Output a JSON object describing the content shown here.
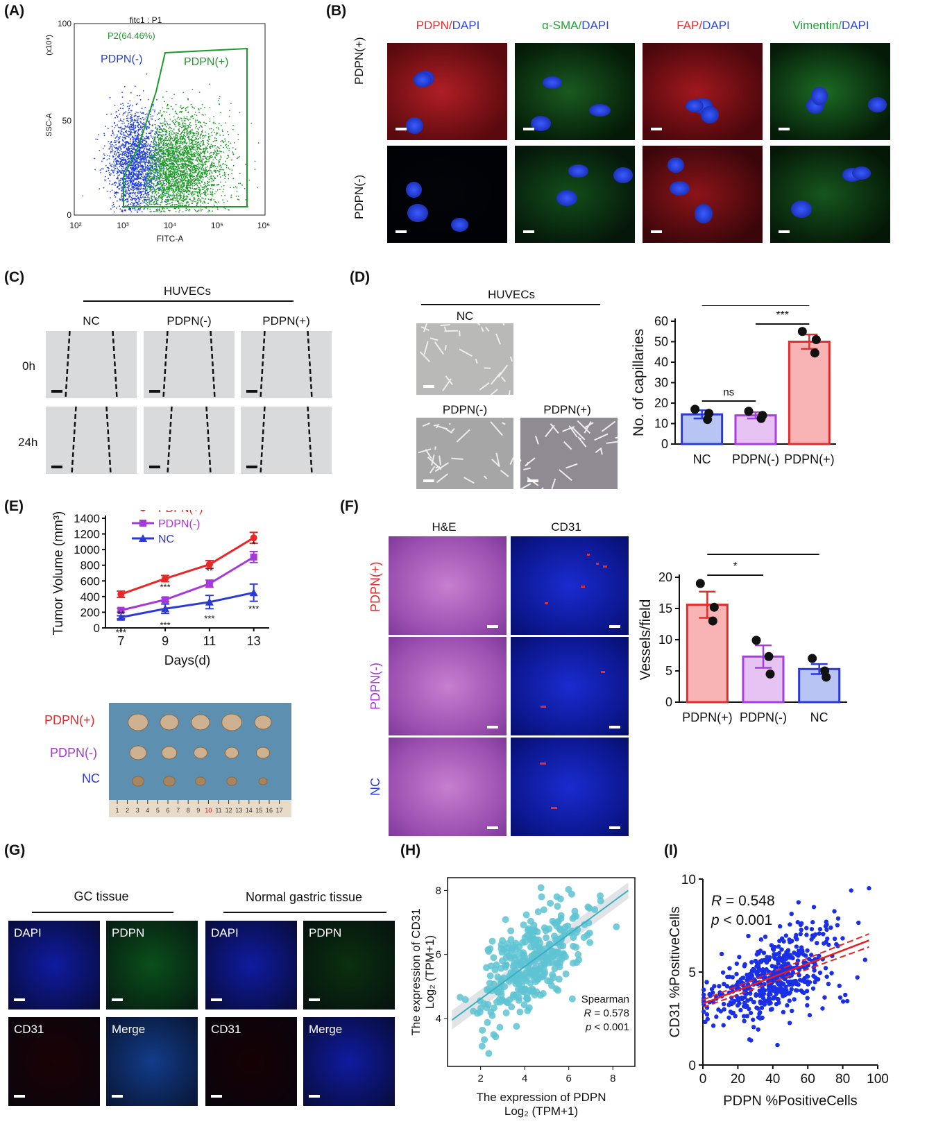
{
  "panel_labels": {
    "A": "(A)",
    "B": "(B)",
    "C": "(C)",
    "D": "(D)",
    "E": "(E)",
    "F": "(F)",
    "G": "(G)",
    "H": "(H)",
    "I": "(I)"
  },
  "panel_A": {
    "title": "fitc1 : P1",
    "gate_label": "P2(64.46%)",
    "pos_label": "PDPN(+)",
    "neg_label": "PDPN(-)",
    "ylabel": "SSC-A",
    "y_multiplier": "(x10⁴)",
    "xlabel": "FITC-A",
    "y_ticks": [
      "100",
      "50",
      "0"
    ],
    "x_ticks": [
      "10²",
      "10³",
      "10⁴",
      "10⁵",
      "10⁶"
    ],
    "colors": {
      "neg": "#1f3fe0",
      "pos": "#1e9a2a"
    }
  },
  "panel_B": {
    "col_headers": [
      {
        "marker": "PDPN",
        "sep": "/",
        "dapi": "DAPI",
        "marker_color": "#e52b2b"
      },
      {
        "marker": "α-SMA",
        "sep": "/",
        "dapi": "DAPI",
        "marker_color": "#21a336"
      },
      {
        "marker": "FAP",
        "sep": "/",
        "dapi": "DAPI",
        "marker_color": "#e52b2b"
      },
      {
        "marker": "Vimentin",
        "sep": "/",
        "dapi": "DAPI",
        "marker_color": "#21a336"
      }
    ],
    "row_labels": [
      "PDPN(+)",
      "PDPN(-)"
    ]
  },
  "panel_C": {
    "group": "HUVECs",
    "col_labels": [
      "NC",
      "PDPN(-)",
      "PDPN(+)"
    ],
    "row_labels": [
      "0h",
      "24h"
    ]
  },
  "panel_D": {
    "group": "HUVECs",
    "image_labels": [
      "NC",
      "PDPN(-)",
      "PDPN(+)"
    ],
    "chart_data": {
      "type": "bar",
      "categories": [
        "NC",
        "PDPN(-)",
        "PDPN(+)"
      ],
      "values": [
        14.5,
        14,
        50
      ],
      "errors": [
        2,
        1.5,
        3.5
      ],
      "points": [
        [
          17,
          12,
          15
        ],
        [
          16,
          12.5,
          14
        ],
        [
          55,
          44.5,
          51
        ]
      ],
      "ylabel": "No. of capillaries",
      "ylim": [
        0,
        60
      ],
      "yticks": [
        0,
        10,
        20,
        30,
        40,
        50,
        60
      ],
      "colors": {
        "fill": [
          "#b8c4f4",
          "#e6c3f3",
          "#f8b4b4"
        ],
        "edge": [
          "#2b39d9",
          "#a93ce0",
          "#e22d2d"
        ]
      },
      "significance": [
        {
          "from": 0,
          "to": 1,
          "label": "ns"
        },
        {
          "from": 1,
          "to": 2,
          "label": "***"
        },
        {
          "from": 0,
          "to": 2,
          "label": "***"
        }
      ]
    }
  },
  "panel_E": {
    "chart_data": {
      "type": "line",
      "x": [
        7,
        9,
        11,
        13
      ],
      "series": [
        {
          "name": "PDPN(+)",
          "values": [
            430,
            630,
            810,
            1150
          ],
          "errors": [
            40,
            40,
            50,
            70
          ],
          "color": "#e82727",
          "marker": "circle"
        },
        {
          "name": "PDPN(-)",
          "values": [
            225,
            360,
            565,
            905
          ],
          "errors": [
            25,
            25,
            45,
            70
          ],
          "color": "#a637d8",
          "marker": "square"
        },
        {
          "name": "NC",
          "values": [
            135,
            245,
            330,
            450
          ],
          "errors": [
            20,
            60,
            85,
            110
          ],
          "color": "#2b39d9",
          "marker": "triangle"
        }
      ],
      "xlabel": "Days(d)",
      "ylabel": "Tumor Volume (mm³)",
      "ylim": [
        0,
        1400
      ],
      "yticks": [
        0,
        200,
        400,
        600,
        800,
        1000,
        1200,
        1400
      ],
      "annotations": [
        {
          "x": 7,
          "upper": "**",
          "lower": "***"
        },
        {
          "x": 9,
          "upper": "***",
          "lower": "***"
        },
        {
          "x": 11,
          "upper": "**",
          "lower": "***"
        },
        {
          "x": 13,
          "upper": "*",
          "lower": "***"
        }
      ]
    },
    "photo_labels": [
      {
        "text": "PDPN(+)",
        "color": "#e82727"
      },
      {
        "text": "PDPN(-)",
        "color": "#a637d8"
      },
      {
        "text": "NC",
        "color": "#2b39d9"
      }
    ],
    "ruler_numbers": [
      "1",
      "2",
      "3",
      "4",
      "5",
      "6",
      "7",
      "8",
      "9",
      "10",
      "11",
      "12",
      "13",
      "14",
      "15",
      "16",
      "17"
    ]
  },
  "panel_F": {
    "col_headers": [
      "H&E",
      "CD31"
    ],
    "row_labels": [
      {
        "text": "PDPN(+)",
        "color": "#e82727"
      },
      {
        "text": "PDPN(-)",
        "color": "#a637d8"
      },
      {
        "text": "NC",
        "color": "#2b39d9"
      }
    ],
    "chart_data": {
      "type": "bar",
      "categories": [
        "PDPN(+)",
        "PDPN(-)",
        "NC"
      ],
      "values": [
        15.6,
        7.3,
        5.3
      ],
      "errors": [
        2.1,
        1.8,
        0.8
      ],
      "points": [
        [
          19,
          13,
          15.2
        ],
        [
          9.9,
          7.3,
          4.5
        ],
        [
          7,
          5,
          4
        ]
      ],
      "ylabel": "Vessels/field",
      "ylim": [
        0,
        20
      ],
      "yticks": [
        0,
        5,
        10,
        15,
        20
      ],
      "colors": {
        "fill": [
          "#f8b4b4",
          "#e6c3f3",
          "#b8c4f4"
        ],
        "edge": [
          "#e22d2d",
          "#a93ce0",
          "#2b39d9"
        ]
      },
      "significance": [
        {
          "from": 0,
          "to": 1,
          "label": "*"
        },
        {
          "from": 0,
          "to": 2,
          "label": "**"
        }
      ]
    }
  },
  "panel_G": {
    "groups": [
      "GC tissue",
      "Normal gastric tissue"
    ],
    "tile_labels": [
      "DAPI",
      "PDPN",
      "DAPI",
      "PDPN",
      "CD31",
      "Merge",
      "CD31",
      "Merge"
    ]
  },
  "panel_H": {
    "chart_data": {
      "type": "scatter",
      "xlabel_line1": "The expression of PDPN",
      "xlabel_line2": "Log₂ (TPM+1)",
      "ylabel_line1": "The expression of CD31",
      "ylabel_line2": "Log₂ (TPM+1)",
      "xlim": [
        0.5,
        9
      ],
      "ylim": [
        2.5,
        8.4
      ],
      "xticks": [
        2,
        4,
        6,
        8
      ],
      "yticks": [
        4,
        6,
        8
      ],
      "fit": {
        "x": [
          0.7,
          8.7
        ],
        "y": [
          3.95,
          8.0
        ]
      },
      "stats_label": "Spearman",
      "r_label": "R",
      "r_value": "= 0.578",
      "p_label": "p",
      "p_value": "< 0.001",
      "point_color": "#5ec3d2",
      "line_color": "#3aaec4"
    }
  },
  "panel_I": {
    "chart_data": {
      "type": "scatter",
      "xlabel": "PDPN %PositiveCells",
      "ylabel": "CD31 %PositiveCells",
      "xlim": [
        0,
        100
      ],
      "ylim": [
        0,
        10
      ],
      "xticks": [
        0,
        20,
        40,
        60,
        80,
        100
      ],
      "yticks": [
        0,
        5,
        10
      ],
      "fit": {
        "x": [
          0,
          95
        ],
        "y": [
          3.3,
          6.7
        ]
      },
      "r_label": "R",
      "r_value": "= 0.548",
      "p_label": "p",
      "p_value": "< 0.001",
      "point_color": "#1a2fe6",
      "line_color": "#ee1c1c"
    }
  }
}
